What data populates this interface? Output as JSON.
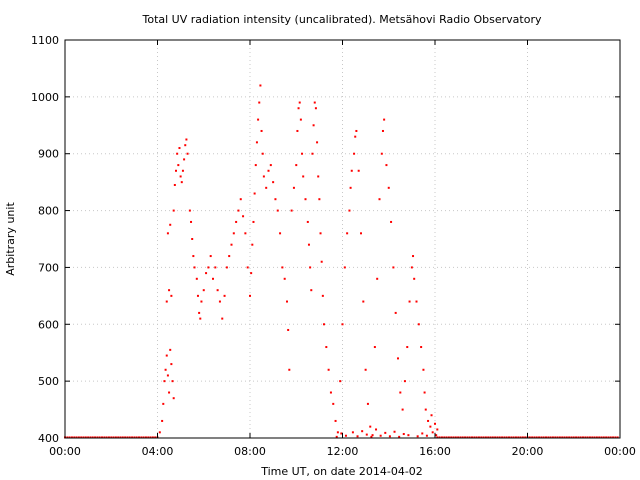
{
  "chart_data": {
    "type": "scatter",
    "title": "Total UV radiation intensity (uncalibrated). Metsähovi Radio Observatory",
    "xlabel": "Time UT, on date 2014-04-02",
    "ylabel": "Arbitrary unit",
    "xlim": [
      0,
      24
    ],
    "ylim": [
      400,
      1100
    ],
    "x_ticks": [
      0,
      4,
      8,
      12,
      16,
      20,
      24
    ],
    "x_tick_labels": [
      "00:00",
      "04:00",
      "08:00",
      "12:00",
      "16:00",
      "20:00",
      "00:00"
    ],
    "y_ticks": [
      400,
      500,
      600,
      700,
      800,
      900,
      1000,
      1100
    ],
    "y_tick_labels": [
      "400",
      "500",
      "600",
      "700",
      "800",
      "900",
      "1000",
      "1100"
    ],
    "grid": true,
    "series": [
      {
        "color": "#ff0000",
        "x_unit": "hours UT",
        "points": [
          [
            4.1,
            410
          ],
          [
            4.2,
            430
          ],
          [
            4.25,
            460
          ],
          [
            4.3,
            500
          ],
          [
            4.35,
            520
          ],
          [
            4.4,
            545
          ],
          [
            4.45,
            510
          ],
          [
            4.5,
            480
          ],
          [
            4.55,
            555
          ],
          [
            4.6,
            530
          ],
          [
            4.65,
            500
          ],
          [
            4.7,
            470
          ],
          [
            4.4,
            640
          ],
          [
            4.5,
            660
          ],
          [
            4.6,
            650
          ],
          [
            4.45,
            760
          ],
          [
            4.55,
            775
          ],
          [
            4.7,
            800
          ],
          [
            4.75,
            845
          ],
          [
            4.8,
            870
          ],
          [
            4.85,
            900
          ],
          [
            4.9,
            880
          ],
          [
            4.95,
            910
          ],
          [
            5.0,
            860
          ],
          [
            5.05,
            850
          ],
          [
            5.1,
            870
          ],
          [
            5.15,
            890
          ],
          [
            5.2,
            915
          ],
          [
            5.25,
            925
          ],
          [
            5.3,
            900
          ],
          [
            5.4,
            800
          ],
          [
            5.45,
            780
          ],
          [
            5.5,
            750
          ],
          [
            5.55,
            720
          ],
          [
            5.6,
            700
          ],
          [
            5.7,
            680
          ],
          [
            5.75,
            650
          ],
          [
            5.8,
            620
          ],
          [
            5.85,
            610
          ],
          [
            5.9,
            640
          ],
          [
            6.0,
            660
          ],
          [
            6.1,
            690
          ],
          [
            6.2,
            700
          ],
          [
            6.3,
            720
          ],
          [
            6.4,
            680
          ],
          [
            6.5,
            700
          ],
          [
            6.6,
            660
          ],
          [
            6.7,
            640
          ],
          [
            6.8,
            610
          ],
          [
            6.9,
            650
          ],
          [
            7.0,
            700
          ],
          [
            7.1,
            720
          ],
          [
            7.2,
            740
          ],
          [
            7.3,
            760
          ],
          [
            7.4,
            780
          ],
          [
            7.5,
            800
          ],
          [
            7.6,
            820
          ],
          [
            7.7,
            790
          ],
          [
            7.8,
            760
          ],
          [
            7.9,
            700
          ],
          [
            8.0,
            650
          ],
          [
            8.05,
            690
          ],
          [
            8.1,
            740
          ],
          [
            8.15,
            780
          ],
          [
            8.2,
            830
          ],
          [
            8.25,
            880
          ],
          [
            8.3,
            920
          ],
          [
            8.35,
            960
          ],
          [
            8.4,
            990
          ],
          [
            8.45,
            1020
          ],
          [
            8.5,
            940
          ],
          [
            8.55,
            900
          ],
          [
            8.6,
            860
          ],
          [
            8.7,
            840
          ],
          [
            8.8,
            870
          ],
          [
            8.9,
            880
          ],
          [
            9.0,
            850
          ],
          [
            9.1,
            820
          ],
          [
            9.2,
            800
          ],
          [
            9.3,
            760
          ],
          [
            9.4,
            700
          ],
          [
            9.5,
            680
          ],
          [
            9.6,
            640
          ],
          [
            9.65,
            590
          ],
          [
            9.7,
            520
          ],
          [
            9.8,
            800
          ],
          [
            9.9,
            840
          ],
          [
            10.0,
            880
          ],
          [
            10.05,
            940
          ],
          [
            10.1,
            980
          ],
          [
            10.15,
            990
          ],
          [
            10.2,
            960
          ],
          [
            10.25,
            900
          ],
          [
            10.3,
            860
          ],
          [
            10.4,
            820
          ],
          [
            10.5,
            780
          ],
          [
            10.55,
            740
          ],
          [
            10.6,
            700
          ],
          [
            10.65,
            660
          ],
          [
            10.7,
            900
          ],
          [
            10.75,
            950
          ],
          [
            10.8,
            990
          ],
          [
            10.85,
            980
          ],
          [
            10.9,
            920
          ],
          [
            10.95,
            860
          ],
          [
            11.0,
            820
          ],
          [
            11.05,
            760
          ],
          [
            11.1,
            710
          ],
          [
            11.15,
            650
          ],
          [
            11.2,
            600
          ],
          [
            11.3,
            560
          ],
          [
            11.4,
            520
          ],
          [
            11.5,
            480
          ],
          [
            11.6,
            460
          ],
          [
            11.7,
            430
          ],
          [
            11.8,
            410
          ],
          [
            11.9,
            500
          ],
          [
            12.0,
            600
          ],
          [
            12.1,
            700
          ],
          [
            12.2,
            760
          ],
          [
            12.3,
            800
          ],
          [
            12.35,
            840
          ],
          [
            12.4,
            870
          ],
          [
            12.5,
            900
          ],
          [
            12.55,
            930
          ],
          [
            12.6,
            940
          ],
          [
            12.7,
            870
          ],
          [
            12.8,
            760
          ],
          [
            12.9,
            640
          ],
          [
            13.0,
            520
          ],
          [
            13.1,
            460
          ],
          [
            13.2,
            420
          ],
          [
            13.3,
            405
          ],
          [
            13.4,
            560
          ],
          [
            13.5,
            680
          ],
          [
            13.6,
            820
          ],
          [
            13.7,
            900
          ],
          [
            13.75,
            940
          ],
          [
            13.8,
            960
          ],
          [
            13.9,
            880
          ],
          [
            14.0,
            840
          ],
          [
            14.1,
            780
          ],
          [
            14.2,
            700
          ],
          [
            14.3,
            620
          ],
          [
            14.4,
            540
          ],
          [
            14.5,
            480
          ],
          [
            14.6,
            450
          ],
          [
            14.7,
            500
          ],
          [
            14.8,
            560
          ],
          [
            14.9,
            640
          ],
          [
            15.0,
            700
          ],
          [
            15.05,
            720
          ],
          [
            15.1,
            680
          ],
          [
            15.2,
            640
          ],
          [
            15.3,
            600
          ],
          [
            15.4,
            560
          ],
          [
            15.5,
            520
          ],
          [
            15.55,
            480
          ],
          [
            15.6,
            450
          ],
          [
            15.7,
            430
          ],
          [
            15.8,
            420
          ],
          [
            15.85,
            440
          ],
          [
            15.9,
            410
          ],
          [
            16.0,
            425
          ],
          [
            16.05,
            405
          ],
          [
            16.1,
            415
          ],
          [
            11.75,
            402
          ],
          [
            11.95,
            408
          ],
          [
            12.15,
            404
          ],
          [
            12.45,
            410
          ],
          [
            12.65,
            403
          ],
          [
            12.85,
            412
          ],
          [
            13.05,
            406
          ],
          [
            13.25,
            402
          ],
          [
            13.45,
            415
          ],
          [
            13.65,
            404
          ],
          [
            13.85,
            409
          ],
          [
            14.05,
            403
          ],
          [
            14.25,
            411
          ],
          [
            14.45,
            402
          ],
          [
            14.65,
            407
          ],
          [
            14.85,
            405
          ],
          [
            15.25,
            403
          ],
          [
            15.45,
            408
          ],
          [
            15.65,
            404
          ]
        ],
        "baseline": {
          "value": 401,
          "ranges": [
            [
              0,
              4.1
            ],
            [
              16.1,
              24
            ]
          ]
        }
      }
    ]
  }
}
